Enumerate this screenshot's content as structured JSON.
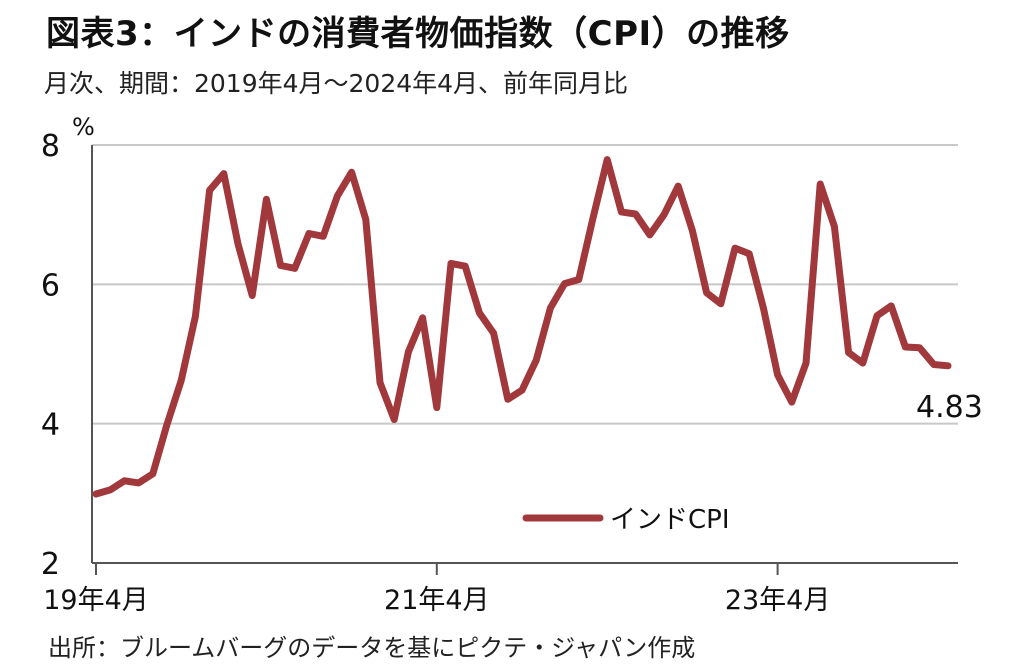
{
  "chart_data": {
    "type": "line",
    "title": "図表3：インドの消費者物価指数（CPI）の推移",
    "subtitle": "月次、期間：2019年4月～2024年4月、前年同月比",
    "source": "出所：ブルームバーグのデータを基にピクテ・ジャパン作成",
    "y_unit": "%",
    "ylim": [
      2,
      8
    ],
    "y_ticks": [
      "2",
      "4",
      "6",
      "8"
    ],
    "x_tick_labels": [
      "19年4月",
      "21年4月",
      "23年4月"
    ],
    "x_tick_months": [
      "2019-04",
      "2021-04",
      "2023-04"
    ],
    "grid": true,
    "legend_position": "bottom-center",
    "end_label": "4.83",
    "colors": {
      "series": "#a0383c",
      "grid": "#c8c8c8"
    },
    "x": [
      "2019-04",
      "2019-05",
      "2019-06",
      "2019-07",
      "2019-08",
      "2019-09",
      "2019-10",
      "2019-11",
      "2019-12",
      "2020-01",
      "2020-02",
      "2020-03",
      "2020-04",
      "2020-05",
      "2020-06",
      "2020-07",
      "2020-08",
      "2020-09",
      "2020-10",
      "2020-11",
      "2020-12",
      "2021-01",
      "2021-02",
      "2021-03",
      "2021-04",
      "2021-05",
      "2021-06",
      "2021-07",
      "2021-08",
      "2021-09",
      "2021-10",
      "2021-11",
      "2021-12",
      "2022-01",
      "2022-02",
      "2022-03",
      "2022-04",
      "2022-05",
      "2022-06",
      "2022-07",
      "2022-08",
      "2022-09",
      "2022-10",
      "2022-11",
      "2022-12",
      "2023-01",
      "2023-02",
      "2023-03",
      "2023-04",
      "2023-05",
      "2023-06",
      "2023-07",
      "2023-08",
      "2023-09",
      "2023-10",
      "2023-11",
      "2023-12",
      "2024-01",
      "2024-02",
      "2024-03",
      "2024-04"
    ],
    "series": [
      {
        "name": "インドCPI",
        "values": [
          2.99,
          3.05,
          3.18,
          3.15,
          3.28,
          3.99,
          4.62,
          5.54,
          7.35,
          7.59,
          6.58,
          5.84,
          7.22,
          6.27,
          6.23,
          6.73,
          6.69,
          7.27,
          7.61,
          6.93,
          4.59,
          4.06,
          5.03,
          5.52,
          4.23,
          6.3,
          6.26,
          5.59,
          5.3,
          4.35,
          4.48,
          4.91,
          5.66,
          6.01,
          6.07,
          6.95,
          7.79,
          7.04,
          7.01,
          6.71,
          7.0,
          7.41,
          6.77,
          5.88,
          5.72,
          6.52,
          6.44,
          5.66,
          4.7,
          4.31,
          4.87,
          7.44,
          6.83,
          5.02,
          4.87,
          5.55,
          5.69,
          5.1,
          5.09,
          4.85,
          4.83
        ]
      }
    ]
  }
}
